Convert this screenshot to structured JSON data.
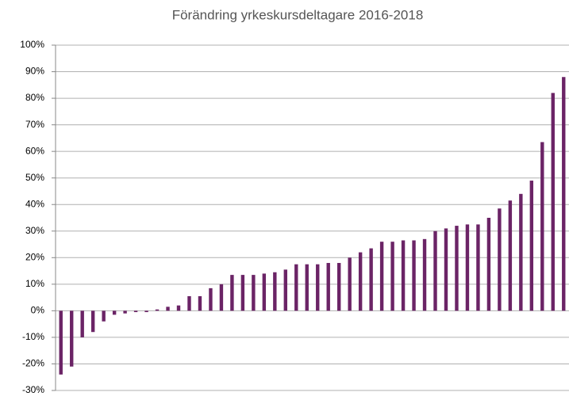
{
  "chart_data": {
    "type": "bar",
    "title": "Förändring yrkeskursdeltagare 2016-2018",
    "categories": [
      null,
      null,
      null,
      null,
      null,
      null,
      null,
      null,
      null,
      null,
      null,
      null,
      null,
      null,
      null,
      null,
      null,
      null,
      null,
      null,
      null,
      null,
      null,
      null,
      null,
      null,
      null,
      null,
      null,
      null,
      null,
      null,
      null,
      null,
      null,
      null,
      null,
      null,
      null,
      null,
      null,
      null,
      null,
      null,
      null,
      null,
      null,
      null
    ],
    "values": [
      -24,
      -21,
      -10,
      -8,
      -4,
      -1.5,
      -1,
      -0.5,
      -0.5,
      0.5,
      1.5,
      2,
      5.5,
      5.5,
      8.5,
      10,
      13.5,
      13.5,
      13.5,
      14,
      14.5,
      15.5,
      17.5,
      17.5,
      17.5,
      18,
      18,
      20,
      22,
      23.5,
      26,
      26,
      26.5,
      26.5,
      27,
      30,
      31,
      32,
      32.5,
      32.5,
      35,
      38.5,
      41.5,
      44,
      49,
      63.5,
      82,
      88
    ],
    "color": "#6b2466",
    "ylim": [
      -30,
      100
    ],
    "yticks": [
      {
        "value": -30,
        "label": "-30%"
      },
      {
        "value": -20,
        "label": "-20%"
      },
      {
        "value": -10,
        "label": "-10%"
      },
      {
        "value": 0,
        "label": "0%"
      },
      {
        "value": 10,
        "label": "10%"
      },
      {
        "value": 20,
        "label": "20%"
      },
      {
        "value": 30,
        "label": "30%"
      },
      {
        "value": 40,
        "label": "40%"
      },
      {
        "value": 50,
        "label": "50%"
      },
      {
        "value": 60,
        "label": "60%"
      },
      {
        "value": 70,
        "label": "70%"
      },
      {
        "value": 80,
        "label": "80%"
      },
      {
        "value": 90,
        "label": "90%"
      },
      {
        "value": 100,
        "label": "100%"
      }
    ],
    "grid": true
  }
}
